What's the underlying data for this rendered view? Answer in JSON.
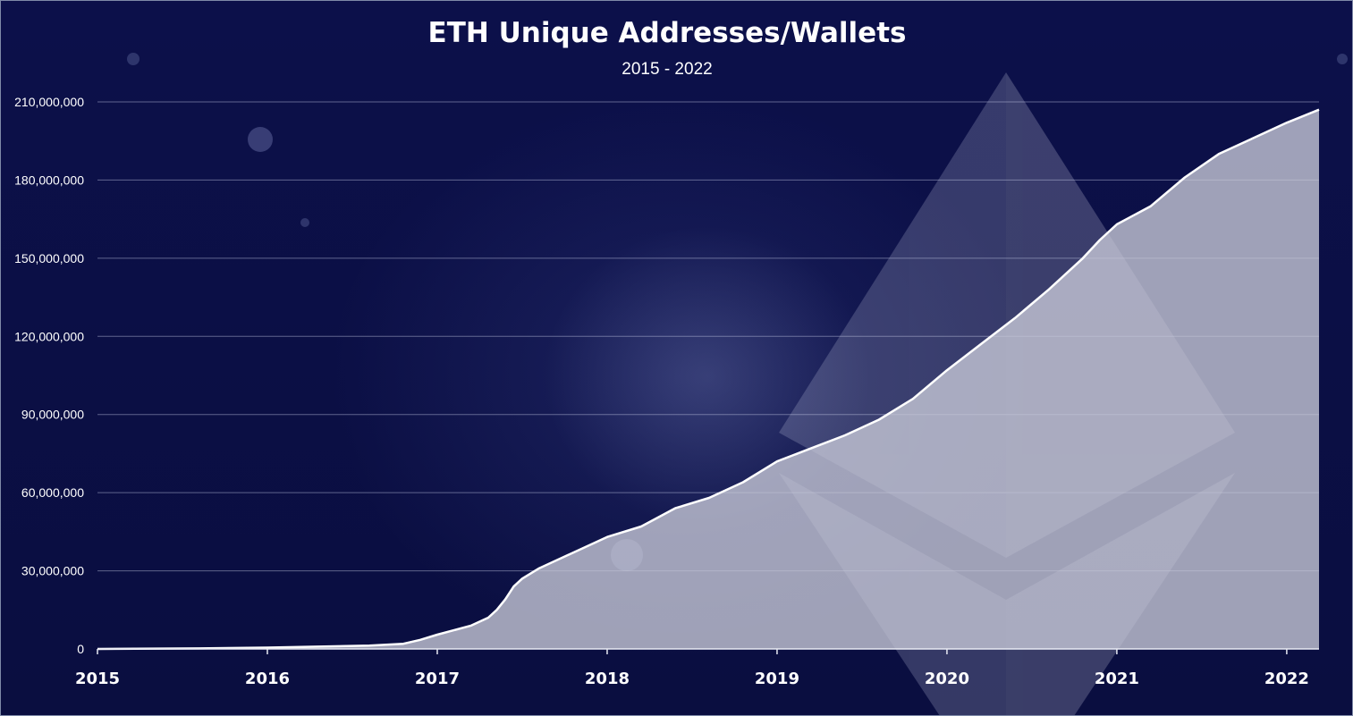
{
  "chart_data": {
    "type": "area",
    "title": "ETH Unique Addresses/Wallets",
    "subtitle": "2015 - 2022",
    "xlabel": "",
    "ylabel": "",
    "xlim": [
      2015.0,
      2022.2
    ],
    "ylim": [
      0,
      210000000
    ],
    "y_ticks": [
      {
        "value": 0,
        "label": "0"
      },
      {
        "value": 30000000,
        "label": "30,000,000"
      },
      {
        "value": 60000000,
        "label": "60,000,000"
      },
      {
        "value": 90000000,
        "label": "90,000,000"
      },
      {
        "value": 120000000,
        "label": "120,000,000"
      },
      {
        "value": 150000000,
        "label": "150,000,000"
      },
      {
        "value": 180000000,
        "label": "180,000,000"
      },
      {
        "value": 210000000,
        "label": "210,000,000"
      }
    ],
    "x_ticks": [
      {
        "value": 2015,
        "label": "2015"
      },
      {
        "value": 2016,
        "label": "2016"
      },
      {
        "value": 2017,
        "label": "2017"
      },
      {
        "value": 2018,
        "label": "2018"
      },
      {
        "value": 2019,
        "label": "2019"
      },
      {
        "value": 2020,
        "label": "2020"
      },
      {
        "value": 2021,
        "label": "2021"
      },
      {
        "value": 2022,
        "label": "2022"
      }
    ],
    "grid": true,
    "legend": "none",
    "series": [
      {
        "x": [
          2015.0,
          2015.6,
          2016.0,
          2016.3,
          2016.6,
          2016.8,
          2016.9,
          2017.0,
          2017.2,
          2017.3,
          2017.35,
          2017.4,
          2017.45,
          2017.5,
          2017.6,
          2017.8,
          2018.0,
          2018.2,
          2018.4,
          2018.6,
          2018.8,
          2019.0,
          2019.2,
          2019.4,
          2019.6,
          2019.8,
          2020.0,
          2020.2,
          2020.4,
          2020.6,
          2020.8,
          2020.9,
          2021.0,
          2021.2,
          2021.4,
          2021.6,
          2021.8,
          2022.0,
          2022.2
        ],
        "values": [
          0,
          200000,
          500000,
          900000,
          1300000,
          2000000,
          3500000,
          5500000,
          9000000,
          12000000,
          15000000,
          19000000,
          24000000,
          27000000,
          31000000,
          37000000,
          43000000,
          47000000,
          54000000,
          58000000,
          64000000,
          72000000,
          77000000,
          82000000,
          88000000,
          96000000,
          107000000,
          117000000,
          127000000,
          138000000,
          150000000,
          157000000,
          163000000,
          170000000,
          181000000,
          190000000,
          196000000,
          202000000,
          207000000
        ]
      }
    ],
    "colors": {
      "background": "#0b0f45",
      "area_fill": "#c9cad9",
      "line": "#ffffff",
      "grid": "#c8cde6"
    }
  }
}
